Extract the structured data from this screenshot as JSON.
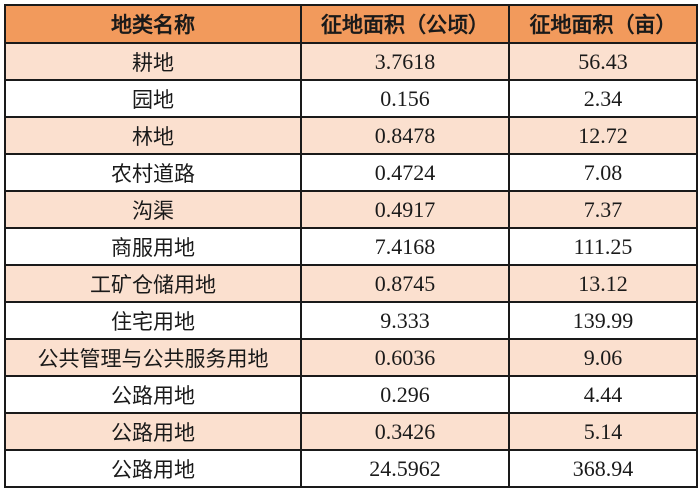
{
  "table": {
    "headers": [
      "地类名称",
      "征地面积（公顷）",
      "征地面积（亩）"
    ],
    "rows": [
      {
        "name": "耕地",
        "hectares": "3.7618",
        "mu": "56.43"
      },
      {
        "name": "园地",
        "hectares": "0.156",
        "mu": "2.34"
      },
      {
        "name": "林地",
        "hectares": "0.8478",
        "mu": "12.72"
      },
      {
        "name": "农村道路",
        "hectares": "0.4724",
        "mu": "7.08"
      },
      {
        "name": "沟渠",
        "hectares": "0.4917",
        "mu": "7.37"
      },
      {
        "name": "商服用地",
        "hectares": "7.4168",
        "mu": "111.25"
      },
      {
        "name": "工矿仓储用地",
        "hectares": "0.8745",
        "mu": "13.12"
      },
      {
        "name": "住宅用地",
        "hectares": "9.333",
        "mu": "139.99"
      },
      {
        "name": "公共管理与公共服务用地",
        "hectares": "0.6036",
        "mu": "9.06"
      },
      {
        "name": "公路用地",
        "hectares": "0.296",
        "mu": "4.44"
      },
      {
        "name": "公路用地",
        "hectares": "0.3426",
        "mu": "5.14"
      },
      {
        "name": "公路用地",
        "hectares": "24.5962",
        "mu": "368.94"
      }
    ]
  },
  "colors": {
    "header_bg": "#f29a5c",
    "shaded_row_bg": "#fbe0cf",
    "plain_row_bg": "#ffffff",
    "border": "#1a1a1a"
  }
}
